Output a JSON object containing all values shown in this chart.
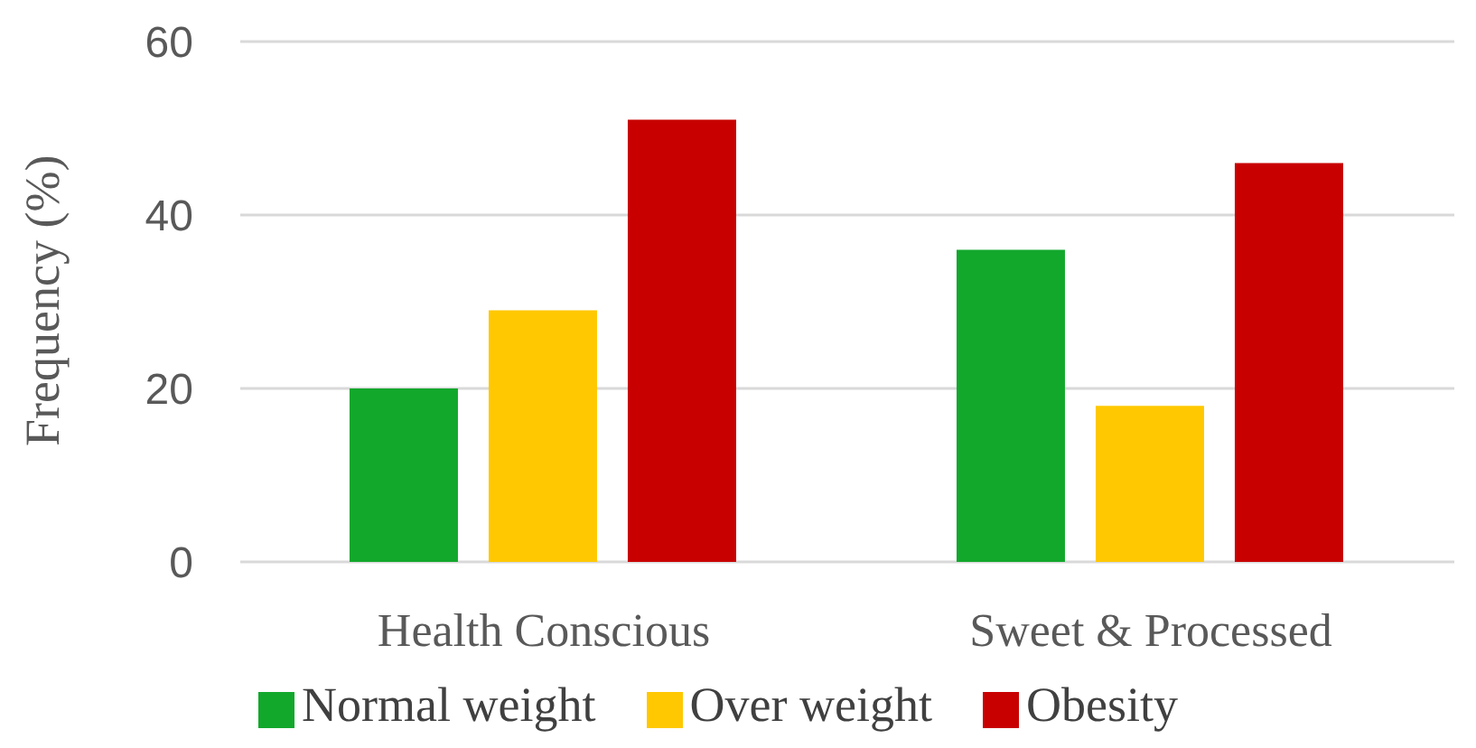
{
  "chart_data": {
    "type": "bar",
    "ylabel": "Frequency (%)",
    "categories": [
      "Health Conscious",
      "Sweet & Processed"
    ],
    "series": [
      {
        "name": "Normal weight",
        "color": "#12a82c",
        "values": [
          20,
          36
        ]
      },
      {
        "name": "Over weight",
        "color": "#ffc800",
        "values": [
          29,
          18
        ]
      },
      {
        "name": "Obesity",
        "color": "#c80000",
        "values": [
          51,
          46
        ]
      }
    ],
    "ylim": [
      0,
      60
    ],
    "yticks": [
      0,
      20,
      40,
      60
    ],
    "grid": "y",
    "legend": "bottom"
  }
}
